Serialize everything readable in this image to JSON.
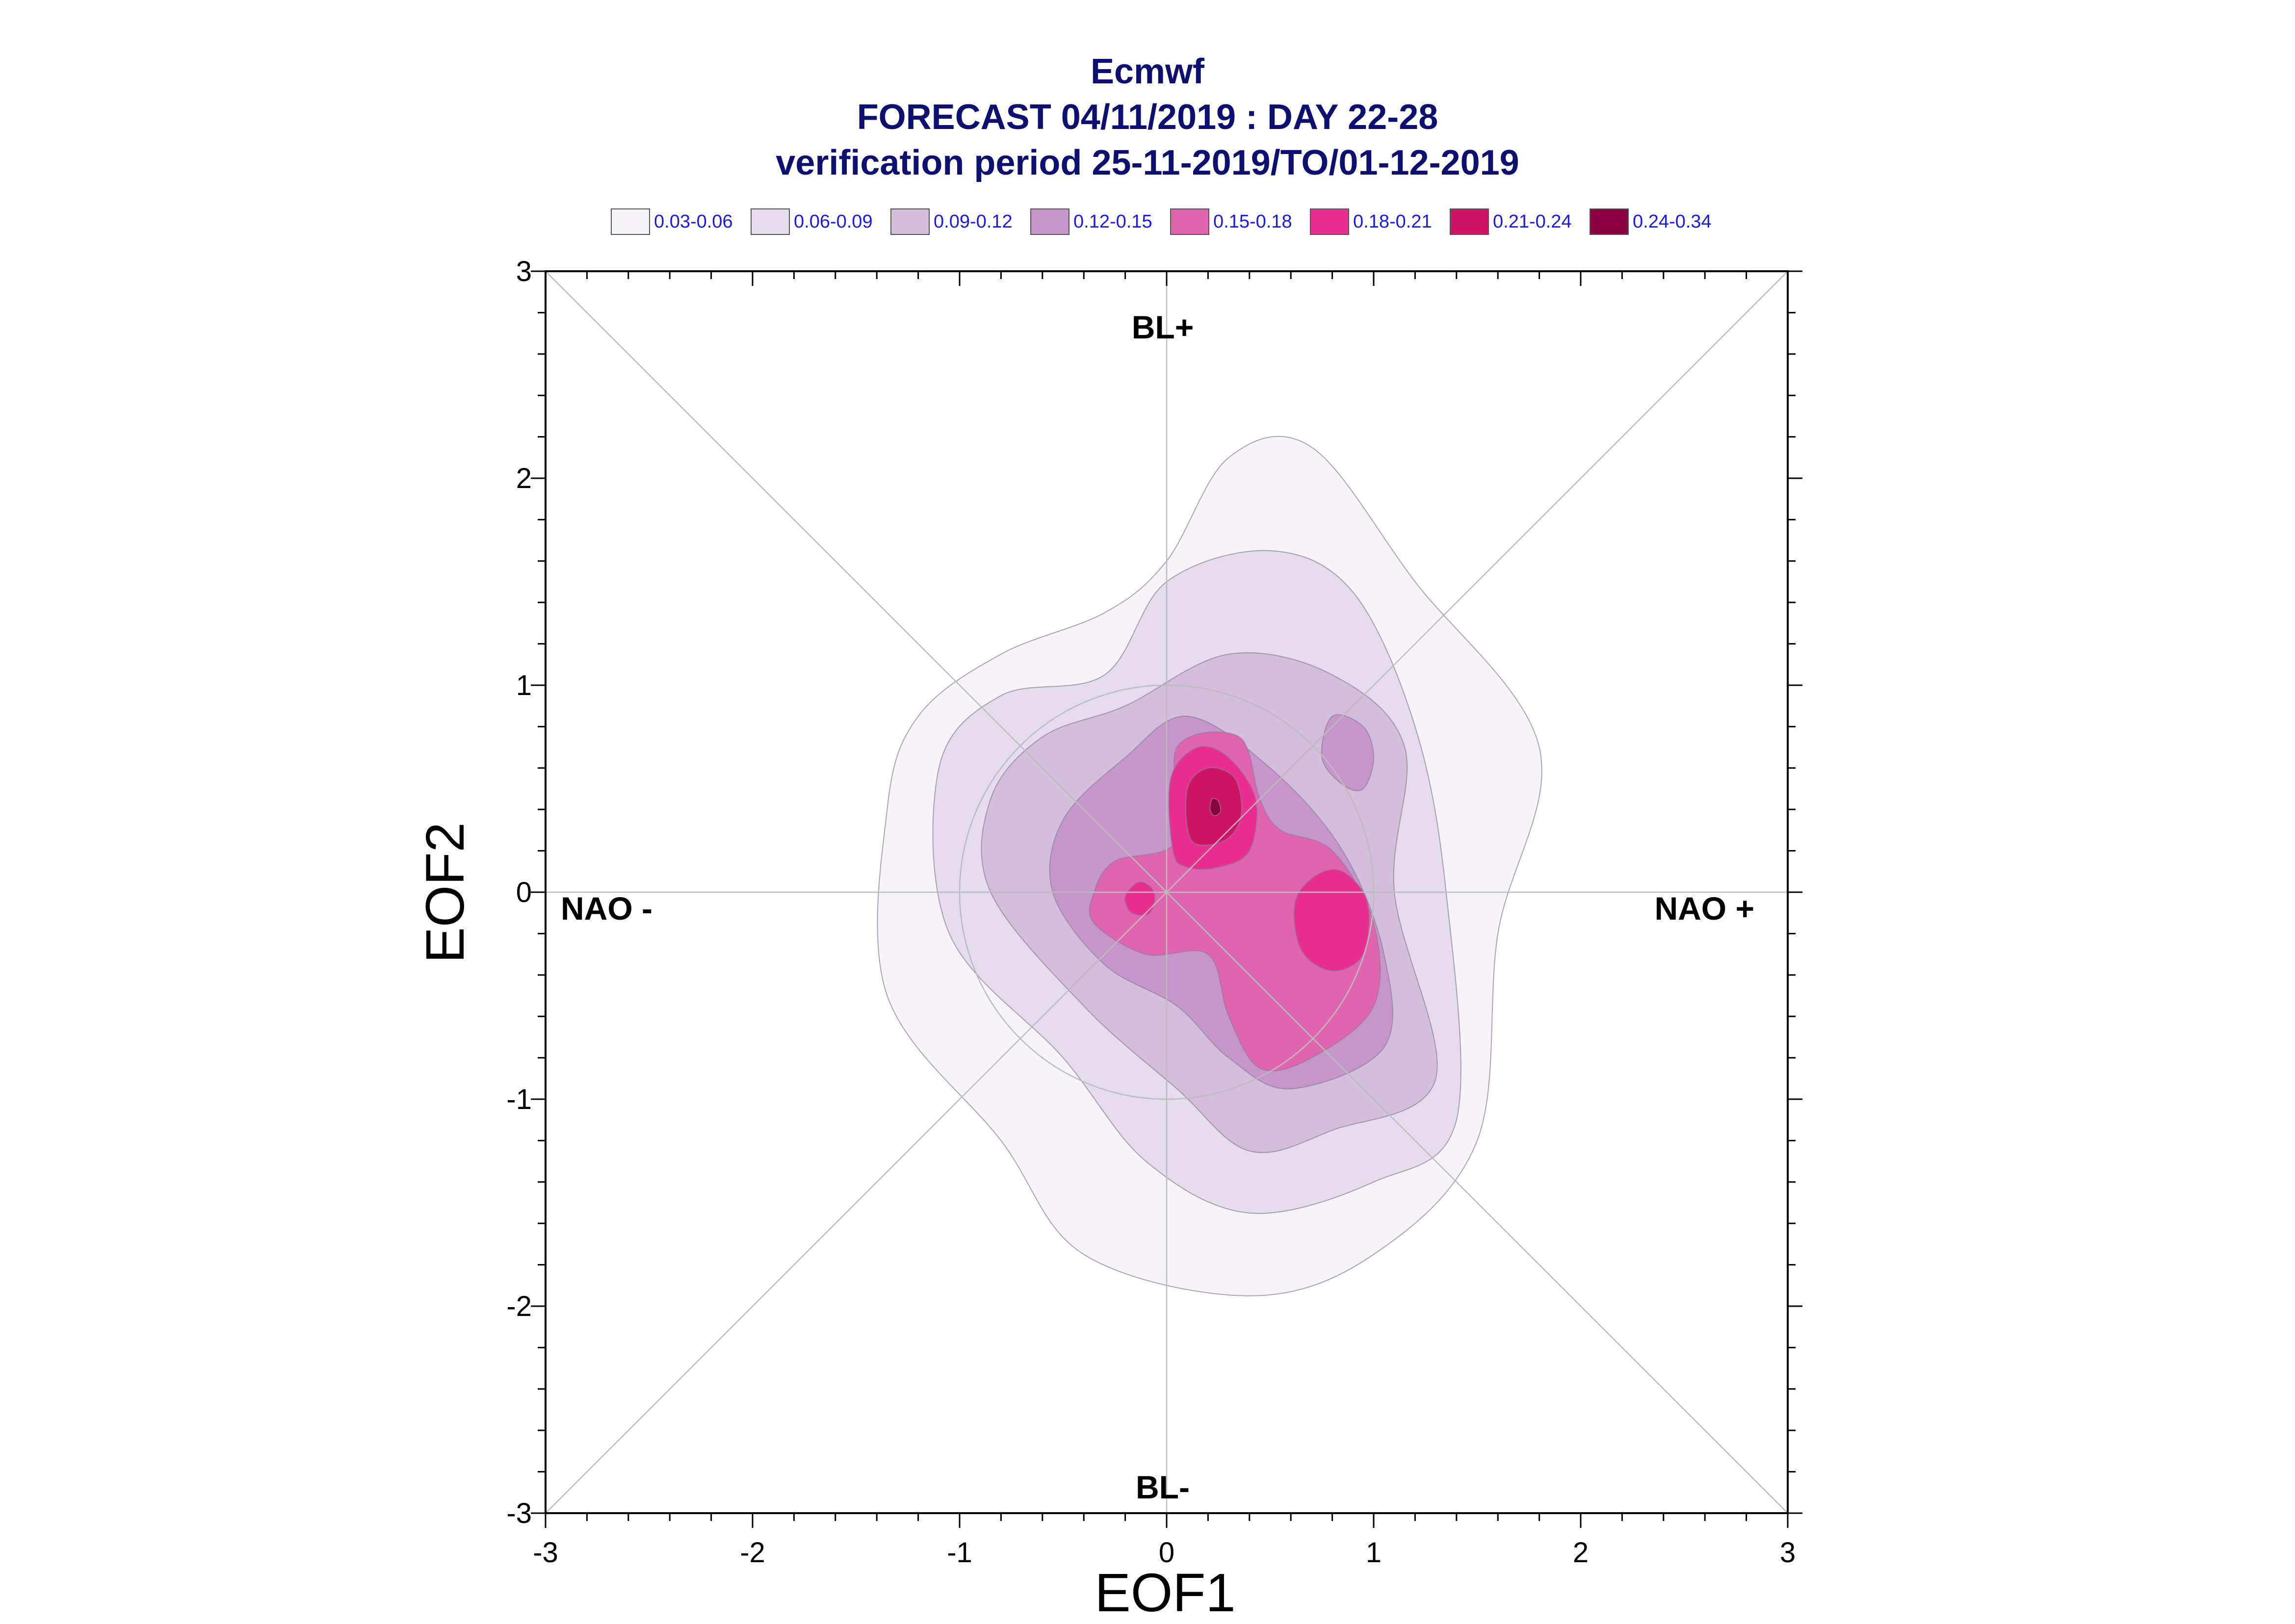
{
  "chart_data": {
    "type": "contour",
    "title": [
      "Ecmwf",
      "FORECAST 04/11/2019 : DAY 22-28",
      "verification period 25-11-2019/TO/01-12-2019"
    ],
    "xlabel": "EOF1",
    "ylabel": "EOF2",
    "xlim": [
      -3,
      3
    ],
    "ylim": [
      -3,
      3
    ],
    "xticks": [
      "-3",
      "-2",
      "-1",
      "0",
      "1",
      "2",
      "3"
    ],
    "yticks": [
      "3",
      "2",
      "1",
      "0",
      "-1",
      "-2",
      "-3"
    ],
    "regime_labels": {
      "top": "BL+",
      "bottom": "BL-",
      "left": "NAO -",
      "right": "NAO +"
    },
    "legend": [
      {
        "label": "0.03-0.06",
        "color": "#f6f3f9"
      },
      {
        "label": "0.06-0.09",
        "color": "#e5dcec"
      },
      {
        "label": "0.09-0.12",
        "color": "#d3bedc"
      },
      {
        "label": "0.12-0.15",
        "color": "#c696ca"
      },
      {
        "label": "0.15-0.18",
        "color": "#e064ae"
      },
      {
        "label": "0.18-0.21",
        "color": "#e92d91"
      },
      {
        "label": "0.21-0.24",
        "color": "#cf1463"
      },
      {
        "label": "0.24-0.34",
        "color": "#8b0040"
      }
    ],
    "reference_circle_radius": 1,
    "density_levels": [
      {
        "level": "0.03-0.06",
        "color": "#f6f3f9",
        "contours": [
          [
            [
              -1.35,
              -0.5
            ],
            [
              -1.35,
              0.4
            ],
            [
              -1.2,
              0.85
            ],
            [
              -0.8,
              1.15
            ],
            [
              -0.3,
              1.35
            ],
            [
              0.0,
              1.6
            ],
            [
              0.3,
              2.1
            ],
            [
              0.7,
              2.15
            ],
            [
              1.2,
              1.5
            ],
            [
              1.8,
              0.7
            ],
            [
              1.6,
              -0.2
            ],
            [
              1.5,
              -1.2
            ],
            [
              1.0,
              -1.75
            ],
            [
              0.4,
              -1.95
            ],
            [
              -0.4,
              -1.75
            ],
            [
              -0.8,
              -1.2
            ]
          ]
        ]
      },
      {
        "level": "0.06-0.09",
        "color": "#e5dcec",
        "contours": [
          [
            [
              -1.05,
              -0.2
            ],
            [
              -1.1,
              0.6
            ],
            [
              -0.8,
              0.95
            ],
            [
              -0.3,
              1.05
            ],
            [
              0.0,
              1.5
            ],
            [
              0.5,
              1.65
            ],
            [
              0.9,
              1.45
            ],
            [
              1.2,
              0.8
            ],
            [
              1.35,
              0.0
            ],
            [
              1.4,
              -1.1
            ],
            [
              1.0,
              -1.4
            ],
            [
              0.4,
              -1.55
            ],
            [
              -0.1,
              -1.3
            ],
            [
              -0.5,
              -0.8
            ]
          ]
        ]
      },
      {
        "level": "0.09-0.12",
        "color": "#d3bedc",
        "contours": [
          [
            [
              -0.85,
              0.0
            ],
            [
              -0.85,
              0.45
            ],
            [
              -0.6,
              0.75
            ],
            [
              -0.2,
              0.9
            ],
            [
              0.3,
              1.15
            ],
            [
              0.8,
              1.05
            ],
            [
              1.15,
              0.7
            ],
            [
              1.1,
              0.0
            ],
            [
              1.3,
              -0.9
            ],
            [
              0.8,
              -1.15
            ],
            [
              0.4,
              -1.25
            ],
            [
              0.05,
              -0.95
            ],
            [
              -0.4,
              -0.55
            ]
          ]
        ]
      },
      {
        "level": "0.12-0.15",
        "color": "#c696ca",
        "contours": [
          [
            [
              -0.55,
              0.0
            ],
            [
              -0.5,
              0.35
            ],
            [
              -0.2,
              0.65
            ],
            [
              0.1,
              0.85
            ],
            [
              0.5,
              0.6
            ],
            [
              0.85,
              0.2
            ],
            [
              1.05,
              -0.3
            ],
            [
              1.05,
              -0.75
            ],
            [
              0.6,
              -0.95
            ],
            [
              0.3,
              -0.8
            ],
            [
              0.05,
              -0.55
            ],
            [
              -0.3,
              -0.35
            ]
          ],
          [
            [
              0.8,
              0.85
            ],
            [
              0.95,
              0.8
            ],
            [
              1.0,
              0.65
            ],
            [
              0.95,
              0.5
            ],
            [
              0.85,
              0.52
            ],
            [
              0.75,
              0.65
            ]
          ]
        ]
      },
      {
        "level": "0.15-0.18",
        "color": "#e064ae",
        "contours": [
          [
            [
              -0.35,
              0.0
            ],
            [
              -0.25,
              0.15
            ],
            [
              0.05,
              0.25
            ],
            [
              0.05,
              0.7
            ],
            [
              0.35,
              0.75
            ],
            [
              0.45,
              0.45
            ],
            [
              0.55,
              0.3
            ],
            [
              0.8,
              0.2
            ],
            [
              1.0,
              -0.15
            ],
            [
              1.0,
              -0.55
            ],
            [
              0.7,
              -0.8
            ],
            [
              0.45,
              -0.85
            ],
            [
              0.3,
              -0.6
            ],
            [
              0.2,
              -0.3
            ],
            [
              -0.1,
              -0.3
            ],
            [
              -0.35,
              -0.15
            ]
          ]
        ]
      },
      {
        "level": "0.18-0.21",
        "color": "#e92d91",
        "contours": [
          [
            [
              0.03,
              0.2
            ],
            [
              0.02,
              0.55
            ],
            [
              0.15,
              0.7
            ],
            [
              0.3,
              0.65
            ],
            [
              0.43,
              0.45
            ],
            [
              0.4,
              0.2
            ],
            [
              0.25,
              0.12
            ],
            [
              0.1,
              0.12
            ]
          ],
          [
            [
              0.62,
              -0.05
            ],
            [
              0.65,
              -0.28
            ],
            [
              0.8,
              -0.38
            ],
            [
              0.95,
              -0.3
            ],
            [
              0.97,
              -0.05
            ],
            [
              0.85,
              0.1
            ],
            [
              0.72,
              0.08
            ]
          ],
          [
            [
              -0.2,
              -0.02
            ],
            [
              -0.13,
              0.05
            ],
            [
              -0.06,
              0.0
            ],
            [
              -0.08,
              -0.1
            ],
            [
              -0.17,
              -0.1
            ]
          ]
        ]
      },
      {
        "level": "0.21-0.24",
        "color": "#cf1463",
        "contours": [
          [
            [
              0.12,
              0.25
            ],
            [
              0.1,
              0.5
            ],
            [
              0.2,
              0.6
            ],
            [
              0.33,
              0.55
            ],
            [
              0.36,
              0.37
            ],
            [
              0.28,
              0.25
            ]
          ]
        ]
      },
      {
        "level": "0.24-0.34",
        "color": "#8b0040",
        "contours": [
          [
            [
              0.21,
              0.4
            ],
            [
              0.22,
              0.45
            ],
            [
              0.25,
              0.44
            ],
            [
              0.26,
              0.39
            ],
            [
              0.23,
              0.37
            ]
          ]
        ]
      }
    ]
  }
}
